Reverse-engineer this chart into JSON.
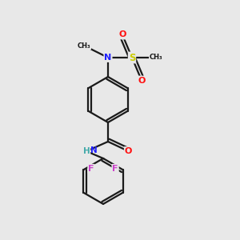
{
  "bg_color": "#e8e8e8",
  "atom_colors": {
    "C": "#1a1a1a",
    "N": "#2020ff",
    "O": "#ff1010",
    "S": "#cccc00",
    "F": "#cc44cc",
    "NH": "#44aaaa",
    "bond": "#1a1a1a"
  },
  "layout": {
    "xlim": [
      0,
      10
    ],
    "ylim": [
      0,
      10
    ]
  }
}
